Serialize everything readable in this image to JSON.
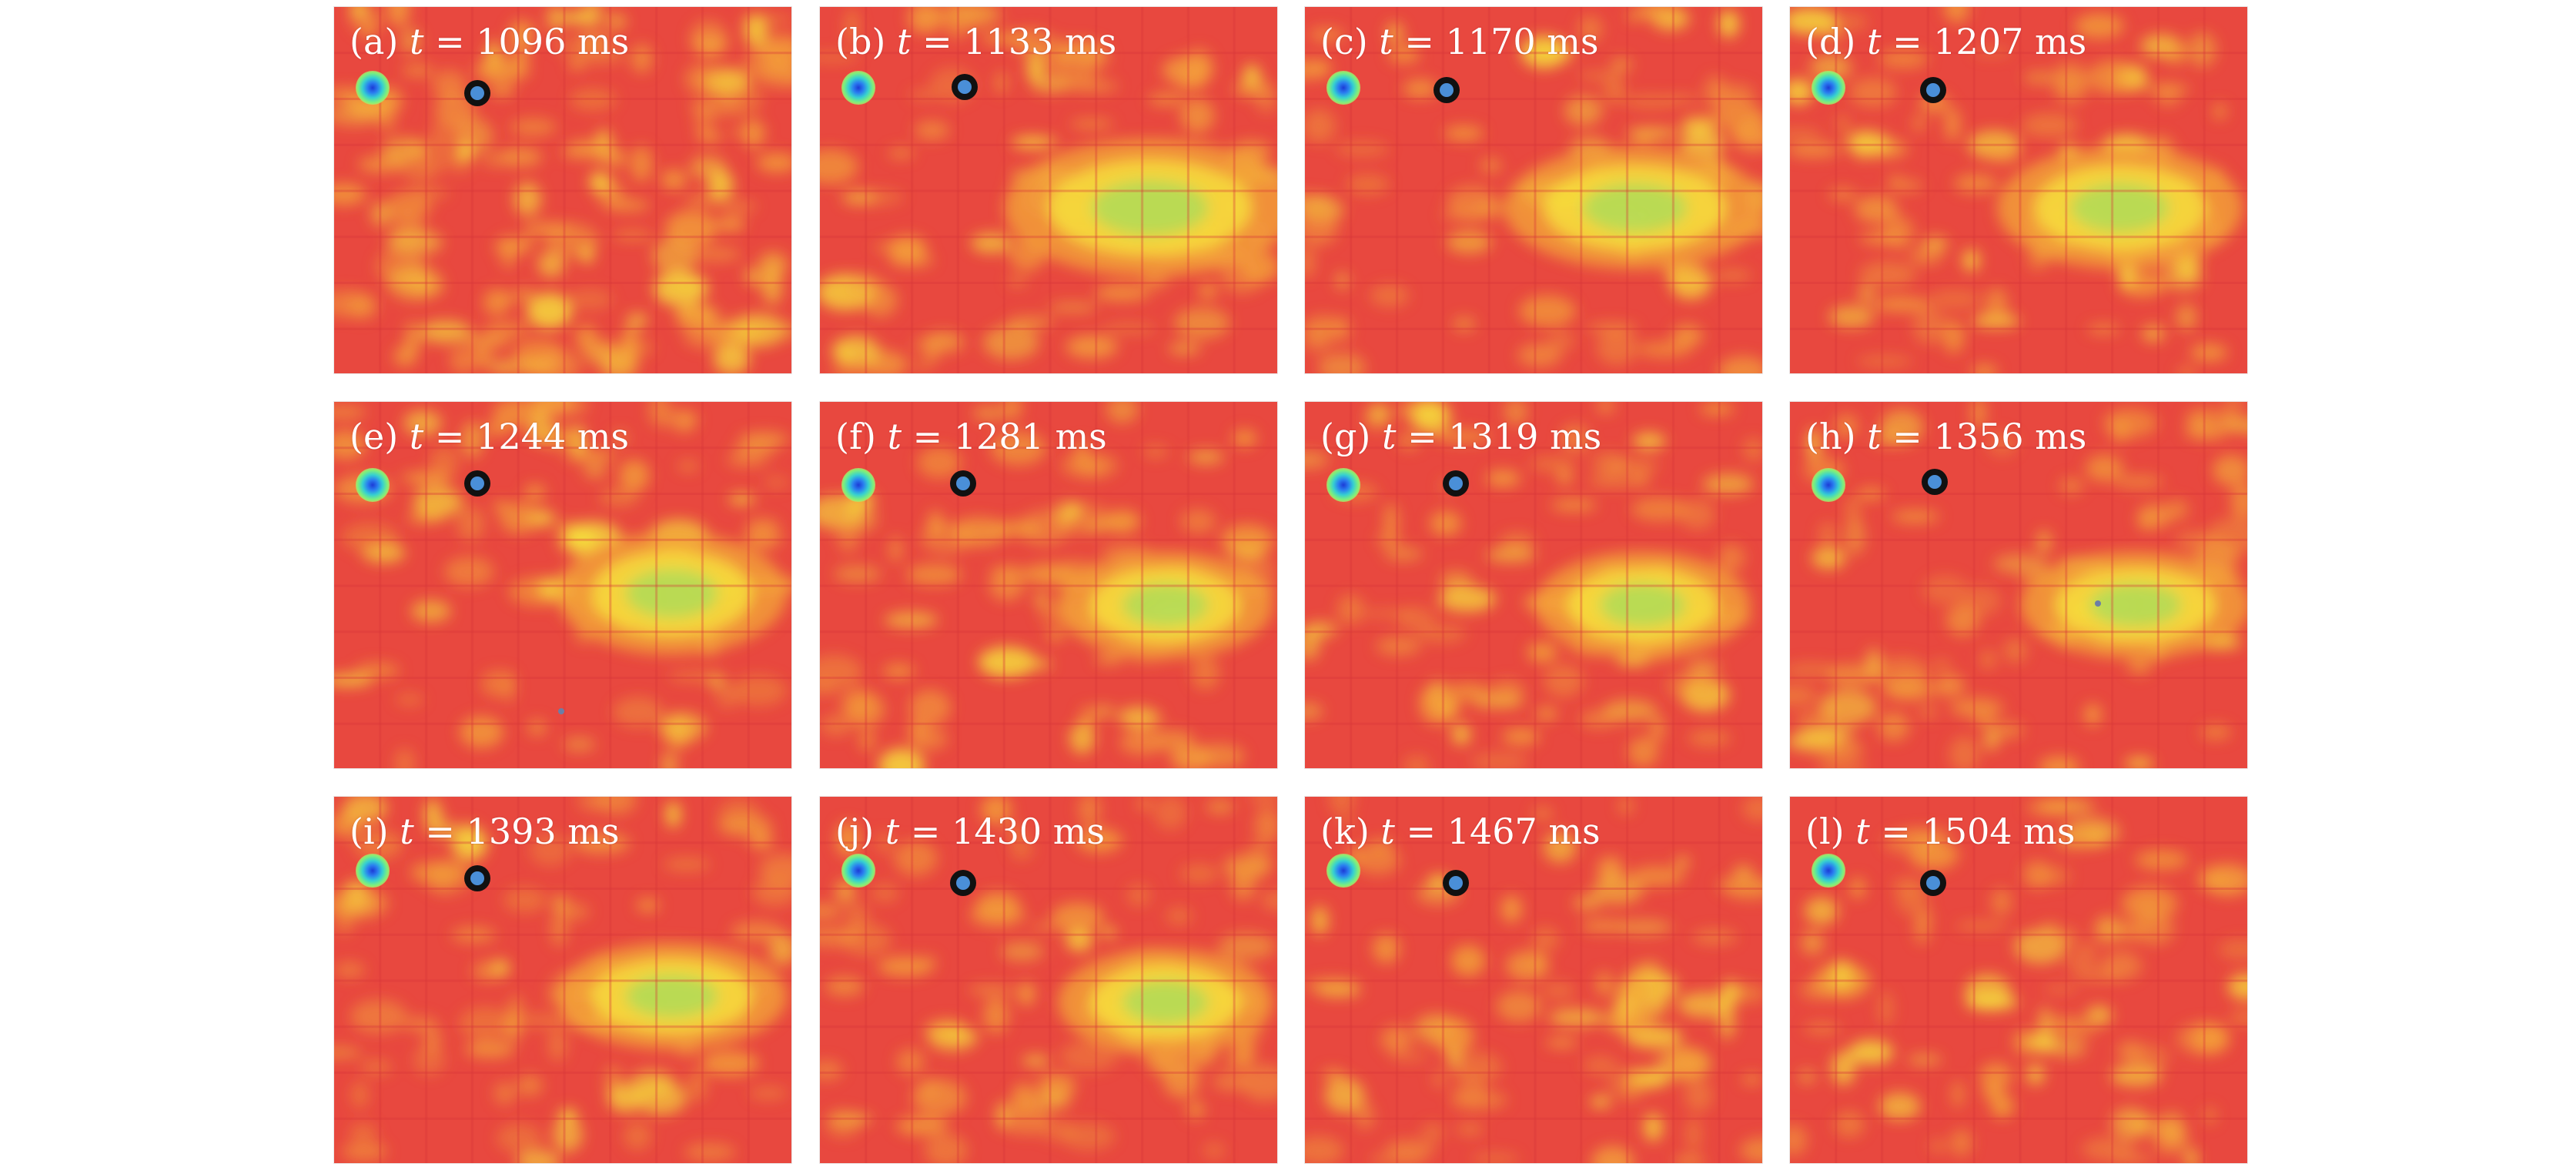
{
  "panels": [
    {
      "id": "a",
      "time": "1096",
      "unit": "ms"
    },
    {
      "id": "b",
      "time": "1133",
      "unit": "ms"
    },
    {
      "id": "c",
      "time": "1170",
      "unit": "ms"
    },
    {
      "id": "d",
      "time": "1207",
      "unit": "ms"
    },
    {
      "id": "e",
      "time": "1244",
      "unit": "ms"
    },
    {
      "id": "f",
      "time": "1281",
      "unit": "ms"
    },
    {
      "id": "g",
      "time": "1319",
      "unit": "ms"
    },
    {
      "id": "h",
      "time": "1356",
      "unit": "ms"
    },
    {
      "id": "i",
      "time": "1393",
      "unit": "ms"
    },
    {
      "id": "j",
      "time": "1430",
      "unit": "ms"
    },
    {
      "id": "k",
      "time": "1467",
      "unit": "ms"
    },
    {
      "id": "l",
      "time": "1504",
      "unit": "ms"
    }
  ],
  "colors": {
    "background_field": "#e8483f",
    "warm_patch": "#f3a23a",
    "hot_patch": "#f6e43c",
    "peak": "#8be06a",
    "probe_ring": "#111111",
    "probe_fill": "#4a8fd8"
  }
}
